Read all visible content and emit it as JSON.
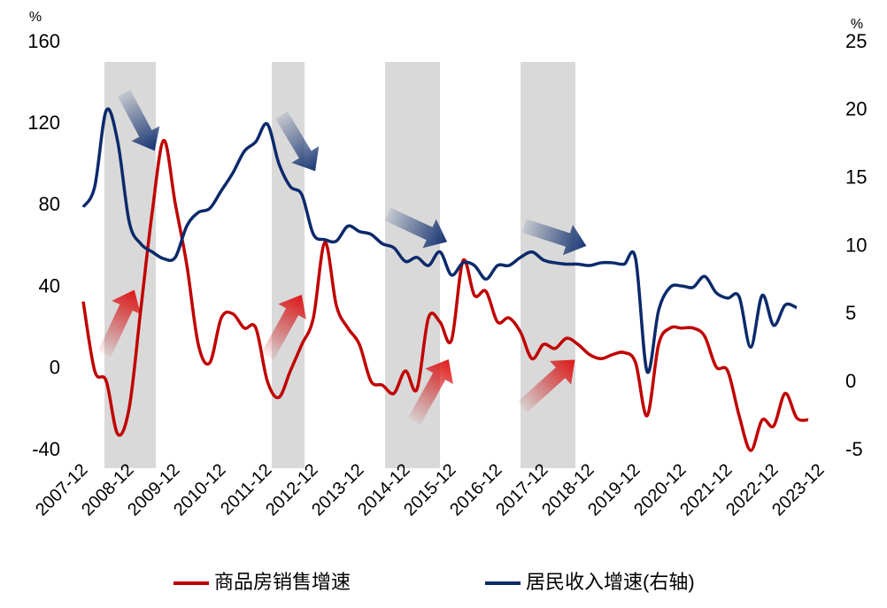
{
  "chart_data": {
    "type": "line",
    "y_unit": "%",
    "y2_unit": "%",
    "categories": [
      "2007-12",
      null,
      null,
      null,
      "2008-12",
      null,
      null,
      null,
      "2009-12",
      null,
      null,
      null,
      "2010-12",
      null,
      null,
      null,
      "2011-12",
      null,
      null,
      null,
      "2012-12",
      null,
      null,
      null,
      "2013-12",
      null,
      null,
      null,
      "2014-12",
      null,
      null,
      null,
      "2015-12",
      null,
      null,
      null,
      "2016-12",
      null,
      null,
      null,
      "2017-12",
      null,
      null,
      null,
      "2018-12",
      null,
      null,
      null,
      "2019-12",
      null,
      null,
      null,
      "2020-12",
      null,
      null,
      null,
      "2021-12",
      null,
      null,
      null,
      "2022-12",
      null,
      null,
      null,
      "2023-12"
    ],
    "series": [
      {
        "name": "商品房销售增速",
        "color": "#c00000",
        "axis": "y",
        "values": [
          33,
          -1,
          -6,
          -32,
          -19,
          29,
          77,
          112,
          81,
          51,
          12,
          3,
          25,
          27,
          20,
          20,
          -6,
          -14,
          -1,
          12,
          25,
          62,
          31,
          20,
          12,
          -6,
          -8,
          -12,
          -1,
          -10,
          25,
          23,
          14,
          53,
          36,
          38,
          23,
          25,
          18,
          5,
          12,
          10,
          15,
          12,
          7,
          5,
          7,
          8,
          3,
          -23,
          12,
          20,
          20,
          20,
          16,
          1,
          -1,
          -23,
          -40,
          -25,
          -28,
          -12,
          -24,
          -25,
          null
        ]
      },
      {
        "name": "居民收入增速(右轴)",
        "color": "#0b2a6b",
        "axis": "y2",
        "values": [
          12.9,
          14.4,
          20.0,
          17.7,
          11.8,
          10.2,
          9.6,
          9.1,
          9.2,
          11.5,
          12.5,
          12.8,
          14.1,
          15.4,
          17.0,
          17.7,
          19.0,
          16.1,
          14.4,
          13.8,
          10.9,
          10.5,
          10.4,
          11.5,
          11.1,
          10.9,
          10.2,
          9.9,
          8.9,
          9.2,
          8.6,
          9.6,
          7.9,
          8.8,
          8.6,
          7.6,
          8.6,
          8.6,
          9.2,
          9.6,
          9.0,
          8.8,
          8.7,
          8.7,
          8.6,
          8.8,
          8.8,
          8.7,
          9.1,
          0.8,
          5.3,
          7.0,
          7.1,
          7.0,
          7.8,
          6.6,
          6.2,
          6.3,
          2.6,
          6.4,
          4.2,
          5.7,
          5.5,
          null,
          null
        ]
      }
    ],
    "ylim": [
      -40,
      160
    ],
    "yticks": [
      -40,
      0,
      40,
      80,
      120,
      160
    ],
    "y2lim": [
      -5,
      25
    ],
    "y2ticks": [
      -5,
      0,
      5,
      10,
      15,
      20,
      25
    ],
    "grid": false,
    "legend": "bottom"
  }
}
